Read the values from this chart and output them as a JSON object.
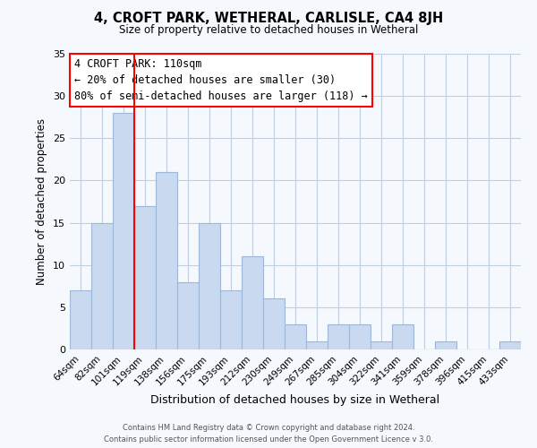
{
  "title": "4, CROFT PARK, WETHERAL, CARLISLE, CA4 8JH",
  "subtitle": "Size of property relative to detached houses in Wetheral",
  "xlabel": "Distribution of detached houses by size in Wetheral",
  "ylabel": "Number of detached properties",
  "bar_color": "#c8d9f0",
  "bar_edge_color": "#a0b8d8",
  "bins": [
    "64sqm",
    "82sqm",
    "101sqm",
    "119sqm",
    "138sqm",
    "156sqm",
    "175sqm",
    "193sqm",
    "212sqm",
    "230sqm",
    "249sqm",
    "267sqm",
    "285sqm",
    "304sqm",
    "322sqm",
    "341sqm",
    "359sqm",
    "378sqm",
    "396sqm",
    "415sqm",
    "433sqm"
  ],
  "values": [
    7,
    15,
    28,
    17,
    21,
    8,
    15,
    7,
    11,
    6,
    3,
    1,
    3,
    3,
    1,
    3,
    0,
    1,
    0,
    0,
    1
  ],
  "ylim": [
    0,
    35
  ],
  "yticks": [
    0,
    5,
    10,
    15,
    20,
    25,
    30,
    35
  ],
  "property_line_x": 2.5,
  "annotation_title": "4 CROFT PARK: 110sqm",
  "annotation_line1": "← 20% of detached houses are smaller (30)",
  "annotation_line2": "80% of semi-detached houses are larger (118) →",
  "footer_line1": "Contains HM Land Registry data © Crown copyright and database right 2024.",
  "footer_line2": "Contains public sector information licensed under the Open Government Licence v 3.0.",
  "background_color": "#f5f8fc",
  "grid_color": "#c0cfe0"
}
